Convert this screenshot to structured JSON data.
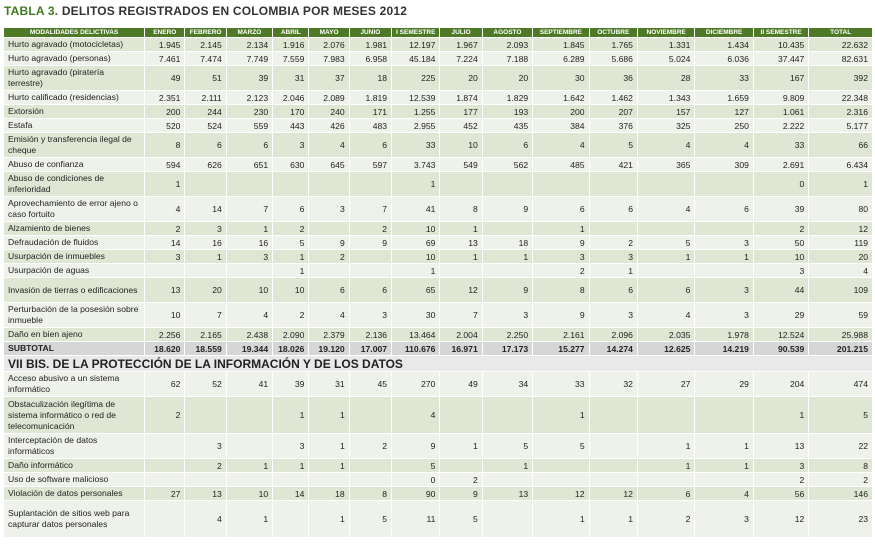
{
  "title": {
    "number": "TABLA 3.",
    "text": "DELITOS REGISTRADOS EN COLOMBIA POR MESES 2012"
  },
  "columns": [
    "MODALIDADES DELICTIVAS",
    "ENERO",
    "FEBRERO",
    "MARZO",
    "ABRIL",
    "MAYO",
    "JUNIO",
    "I SEMESTRE",
    "JULIO",
    "AGOSTO",
    "SEPTIEMBRE",
    "OCTUBRE",
    "NOVIEMBRE",
    "DICIEMBRE",
    "II SEMESTRE",
    "TOTAL"
  ],
  "rows": [
    {
      "label": "Hurto agravado (motocicletas)",
      "values": [
        "1.945",
        "2.145",
        "2.134",
        "1.916",
        "2.076",
        "1.981",
        "12.197",
        "1.967",
        "2.093",
        "1.845",
        "1.765",
        "1.331",
        "1.434",
        "10.435",
        "22.632"
      ]
    },
    {
      "label": "Hurto agravado (personas)",
      "values": [
        "7.461",
        "7.474",
        "7.749",
        "7.559",
        "7.983",
        "6.958",
        "45.184",
        "7.224",
        "7.188",
        "6.289",
        "5.686",
        "5.024",
        "6.036",
        "37.447",
        "82.631"
      ]
    },
    {
      "label": "Hurto agravado (piratería terrestre)",
      "values": [
        "49",
        "51",
        "39",
        "31",
        "37",
        "18",
        "225",
        "20",
        "20",
        "30",
        "36",
        "28",
        "33",
        "167",
        "392"
      ]
    },
    {
      "label": "Hurto calificado (residencias)",
      "values": [
        "2.351",
        "2.111",
        "2.123",
        "2.046",
        "2.089",
        "1.819",
        "12.539",
        "1.874",
        "1.829",
        "1.642",
        "1.462",
        "1.343",
        "1.659",
        "9.809",
        "22.348"
      ]
    },
    {
      "label": "Extorsión",
      "values": [
        "200",
        "244",
        "230",
        "170",
        "240",
        "171",
        "1.255",
        "177",
        "193",
        "200",
        "207",
        "157",
        "127",
        "1.061",
        "2.316"
      ]
    },
    {
      "label": "Estafa",
      "values": [
        "520",
        "524",
        "559",
        "443",
        "426",
        "483",
        "2.955",
        "452",
        "435",
        "384",
        "376",
        "325",
        "250",
        "2.222",
        "5.177"
      ]
    },
    {
      "label": "Emisión y transferencia ilegal de cheque",
      "values": [
        "8",
        "6",
        "6",
        "3",
        "4",
        "6",
        "33",
        "10",
        "6",
        "4",
        "5",
        "4",
        "4",
        "33",
        "66"
      ]
    },
    {
      "label": "Abuso de confianza",
      "values": [
        "594",
        "626",
        "651",
        "630",
        "645",
        "597",
        "3.743",
        "549",
        "562",
        "485",
        "421",
        "365",
        "309",
        "2.691",
        "6.434"
      ]
    },
    {
      "label": "Abuso de condiciones de inferioridad",
      "values": [
        "1",
        "",
        "",
        "",
        "",
        "",
        "1",
        "",
        "",
        "",
        "",
        "",
        "",
        "0",
        "1"
      ]
    },
    {
      "label": "Aprovechamiento de error ajeno o caso fortuito",
      "values": [
        "4",
        "14",
        "7",
        "6",
        "3",
        "7",
        "41",
        "8",
        "9",
        "6",
        "6",
        "4",
        "6",
        "39",
        "80"
      ]
    },
    {
      "label": "Alzamiento de bienes",
      "values": [
        "2",
        "3",
        "1",
        "2",
        "",
        "2",
        "10",
        "1",
        "",
        "1",
        "",
        "",
        "",
        "2",
        "12"
      ]
    },
    {
      "label": "Defraudación de fluidos",
      "values": [
        "14",
        "16",
        "16",
        "5",
        "9",
        "9",
        "69",
        "13",
        "18",
        "9",
        "2",
        "5",
        "3",
        "50",
        "119"
      ]
    },
    {
      "label": "Usurpación de inmuebles",
      "values": [
        "3",
        "1",
        "3",
        "1",
        "2",
        "",
        "10",
        "1",
        "1",
        "3",
        "3",
        "1",
        "1",
        "10",
        "20"
      ]
    },
    {
      "label": "Usurpación de aguas",
      "values": [
        "",
        "",
        "",
        "1",
        "",
        "",
        "1",
        "",
        "",
        "2",
        "1",
        "",
        "",
        "3",
        "4"
      ]
    },
    {
      "label": "Invasión de tierras o edificaciones",
      "values": [
        "13",
        "20",
        "10",
        "10",
        "6",
        "6",
        "65",
        "12",
        "9",
        "8",
        "6",
        "6",
        "3",
        "44",
        "109"
      ]
    },
    {
      "label": "Perturbación de la posesión sobre inmueble",
      "values": [
        "10",
        "7",
        "4",
        "2",
        "4",
        "3",
        "30",
        "7",
        "3",
        "9",
        "3",
        "4",
        "3",
        "29",
        "59"
      ]
    },
    {
      "label": "Daño en bien ajeno",
      "values": [
        "2.256",
        "2.165",
        "2.438",
        "2.090",
        "2.379",
        "2.136",
        "13.464",
        "2.004",
        "2.250",
        "2.161",
        "2.096",
        "2.035",
        "1.978",
        "12.524",
        "25.988"
      ]
    }
  ],
  "subtotal": {
    "label": "SUBTOTAL",
    "values": [
      "18.620",
      "18.559",
      "19.344",
      "18.026",
      "19.120",
      "17.007",
      "110.676",
      "16.971",
      "17.173",
      "15.277",
      "14.274",
      "12.625",
      "14.219",
      "90.539",
      "201.215"
    ]
  },
  "section2": {
    "heading": "VII BIS. DE LA PROTECCIÓN DE LA INFORMACIÓN Y DE LOS DATOS",
    "rows": [
      {
        "label": "Acceso abusivo a un sistema informático",
        "values": [
          "62",
          "52",
          "41",
          "39",
          "31",
          "45",
          "270",
          "49",
          "34",
          "33",
          "32",
          "27",
          "29",
          "204",
          "474"
        ]
      },
      {
        "label": "Obstaculización ilegítima de sistema informático o red de telecomunicación",
        "values": [
          "2",
          "",
          "",
          "1",
          "1",
          "",
          "4",
          "",
          "",
          "1",
          "",
          "",
          "",
          "1",
          "5"
        ]
      },
      {
        "label": "Interceptación de datos informáticos",
        "values": [
          "",
          "3",
          "",
          "3",
          "1",
          "2",
          "9",
          "1",
          "5",
          "5",
          "",
          "1",
          "1",
          "13",
          "22"
        ]
      },
      {
        "label": "Daño informático",
        "values": [
          "",
          "2",
          "1",
          "1",
          "1",
          "",
          "5",
          "",
          "1",
          "",
          "",
          "1",
          "1",
          "3",
          "8"
        ]
      },
      {
        "label": "Uso de software malicioso",
        "values": [
          "",
          "",
          "",
          "",
          "",
          "",
          "0",
          "2",
          "",
          "",
          "",
          "",
          "",
          "2",
          "2"
        ]
      },
      {
        "label": "Violación de datos personales",
        "values": [
          "27",
          "13",
          "10",
          "14",
          "18",
          "8",
          "90",
          "9",
          "13",
          "12",
          "12",
          "6",
          "4",
          "56",
          "146"
        ]
      },
      {
        "label": "Suplantación de sitios web para capturar datos personales",
        "values": [
          "",
          "4",
          "1",
          "",
          "1",
          "5",
          "11",
          "5",
          "",
          "1",
          "1",
          "2",
          "3",
          "12",
          "23"
        ]
      }
    ]
  }
}
